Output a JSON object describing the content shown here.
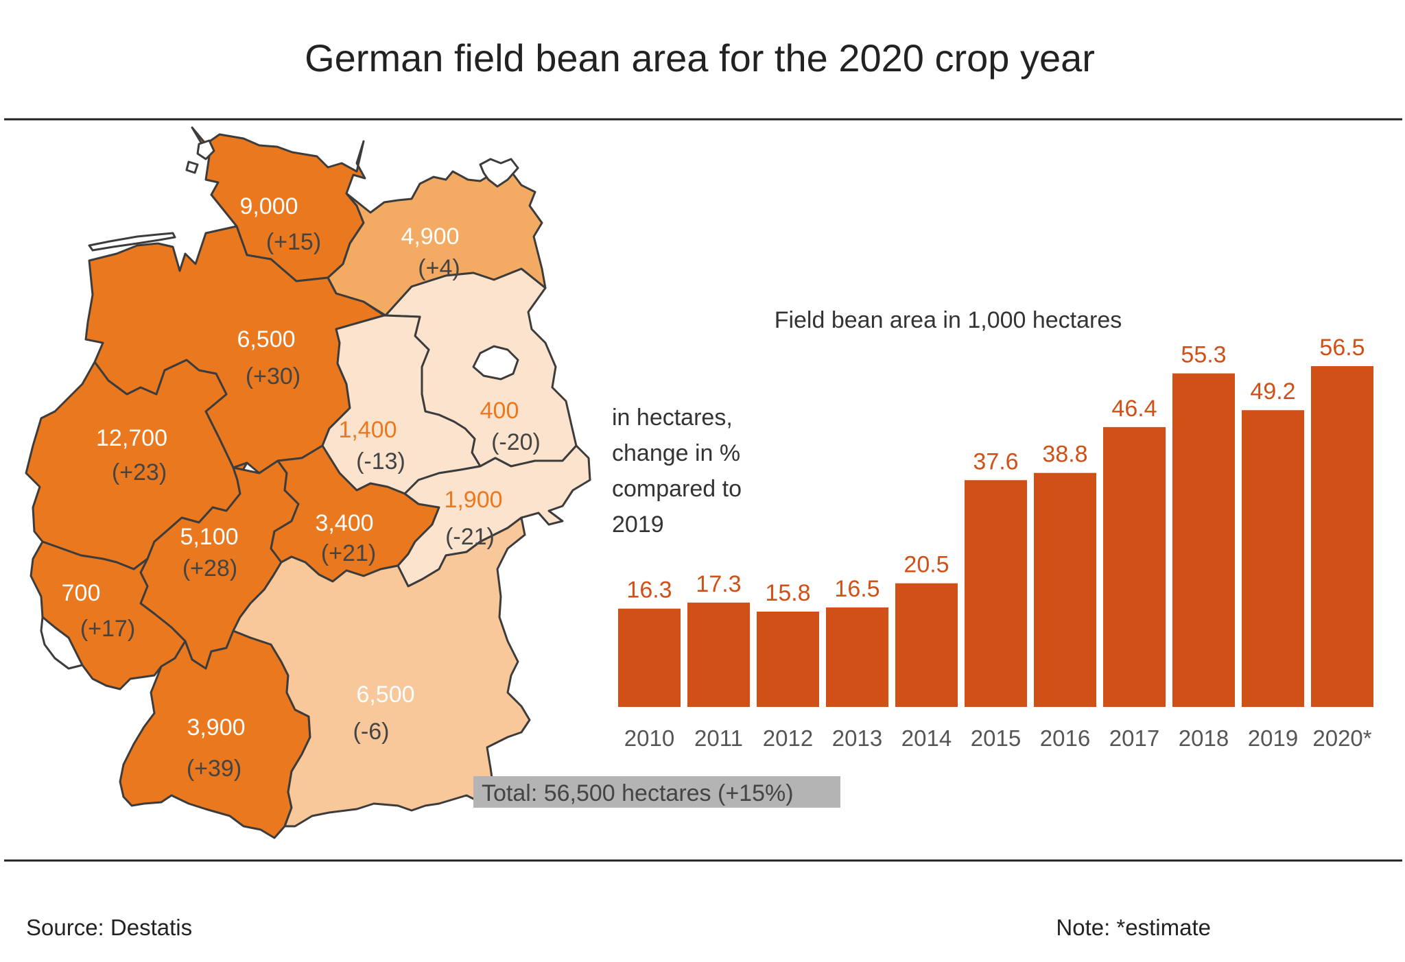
{
  "title": "German field bean area for the 2020 crop year",
  "colors": {
    "bar": "#d05018",
    "bar_label": "#d05018",
    "state_high": "#ea781e",
    "state_mid": "#f3aa63",
    "state_low": "#f8c79a",
    "state_pale": "#fce3cd",
    "state_border": "#3c3c3c",
    "region_text_light": "#ffffff",
    "region_text_dark": "#444444",
    "region_text_orange": "#ea781e",
    "total_box": "#b4b4b4"
  },
  "map": {
    "regions": [
      {
        "name": "Schleswig-Holstein/Hamburg",
        "value": "9,000",
        "change": "(+15)",
        "tone": "high"
      },
      {
        "name": "Mecklenburg-Western Pomerania",
        "value": "4,900",
        "change": "(+4)",
        "tone": "mid"
      },
      {
        "name": "Lower Saxony/Bremen",
        "value": "6,500",
        "change": "(+30)",
        "tone": "high"
      },
      {
        "name": "Brandenburg/Berlin",
        "value": "400",
        "change": "(-20)",
        "tone": "pale"
      },
      {
        "name": "Saxony-Anhalt",
        "value": "1,400",
        "change": "(-13)",
        "tone": "pale"
      },
      {
        "name": "North Rhine-Westphalia",
        "value": "12,700",
        "change": "(+23)",
        "tone": "high"
      },
      {
        "name": "Hesse",
        "value": "5,100",
        "change": "(+28)",
        "tone": "high"
      },
      {
        "name": "Thuringia",
        "value": "3,400",
        "change": "(+21)",
        "tone": "high"
      },
      {
        "name": "Saxony",
        "value": "1,900",
        "change": "(-21)",
        "tone": "pale"
      },
      {
        "name": "Rhineland-Palatinate/Saarland",
        "value": "700",
        "change": "(+17)",
        "tone": "high"
      },
      {
        "name": "Baden-Württemberg",
        "value": "3,900",
        "change": "(+39)",
        "tone": "high"
      },
      {
        "name": "Bavaria",
        "value": "6,500",
        "change": "(-6)",
        "tone": "low"
      }
    ],
    "total": "Total: 56,500 hectares (+15%)",
    "legend_note": "in hectares, change in % compared to 2019",
    "legend_lines": [
      "in hectares,",
      "change in %",
      "compared  to",
      "2019"
    ]
  },
  "chart_data": {
    "type": "bar",
    "title": "Field bean area in 1,000 hectares",
    "categories": [
      "2010",
      "2011",
      "2012",
      "2013",
      "2014",
      "2015",
      "2016",
      "2017",
      "2018",
      "2019",
      "2020*"
    ],
    "values": [
      16.3,
      17.3,
      15.8,
      16.5,
      20.5,
      37.6,
      38.8,
      46.4,
      55.3,
      49.2,
      56.5
    ],
    "value_labels": [
      "16.3",
      "17.3",
      "15.8",
      "16.5",
      "20.5",
      "37.6",
      "38.8",
      "46.4",
      "55.3",
      "49.2",
      "56.5"
    ],
    "ylim": [
      0,
      60
    ],
    "xlabel": "",
    "ylabel": "",
    "grid": false
  },
  "footer": {
    "source": "Source:  Destatis",
    "note": "Note: *estimate"
  }
}
